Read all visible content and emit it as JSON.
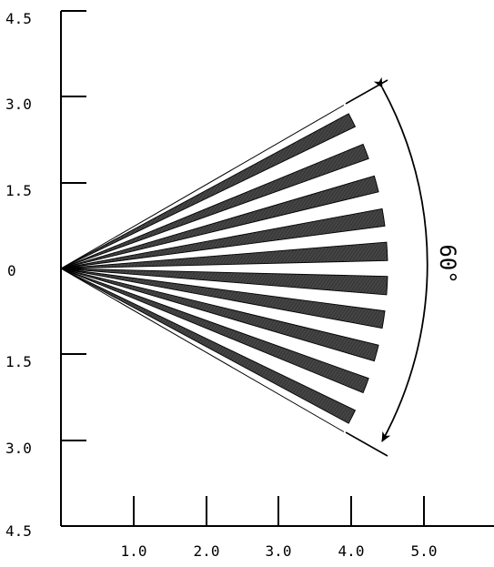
{
  "diagram": {
    "y_tick_labels": [
      "4.5",
      "3.0",
      "1.5",
      "0",
      "1.5",
      "3.0",
      "4.5"
    ],
    "x_tick_labels": [
      "1.0",
      "2.0",
      "3.0",
      "4.0",
      "5.0"
    ],
    "angle_label": "60°",
    "fan": {
      "beam_count": 10,
      "span_degrees": 60,
      "range_units": 4.5
    },
    "colors": {
      "ink": "#000000",
      "beam_fill": "#3a3a3a",
      "background": "#ffffff"
    }
  }
}
